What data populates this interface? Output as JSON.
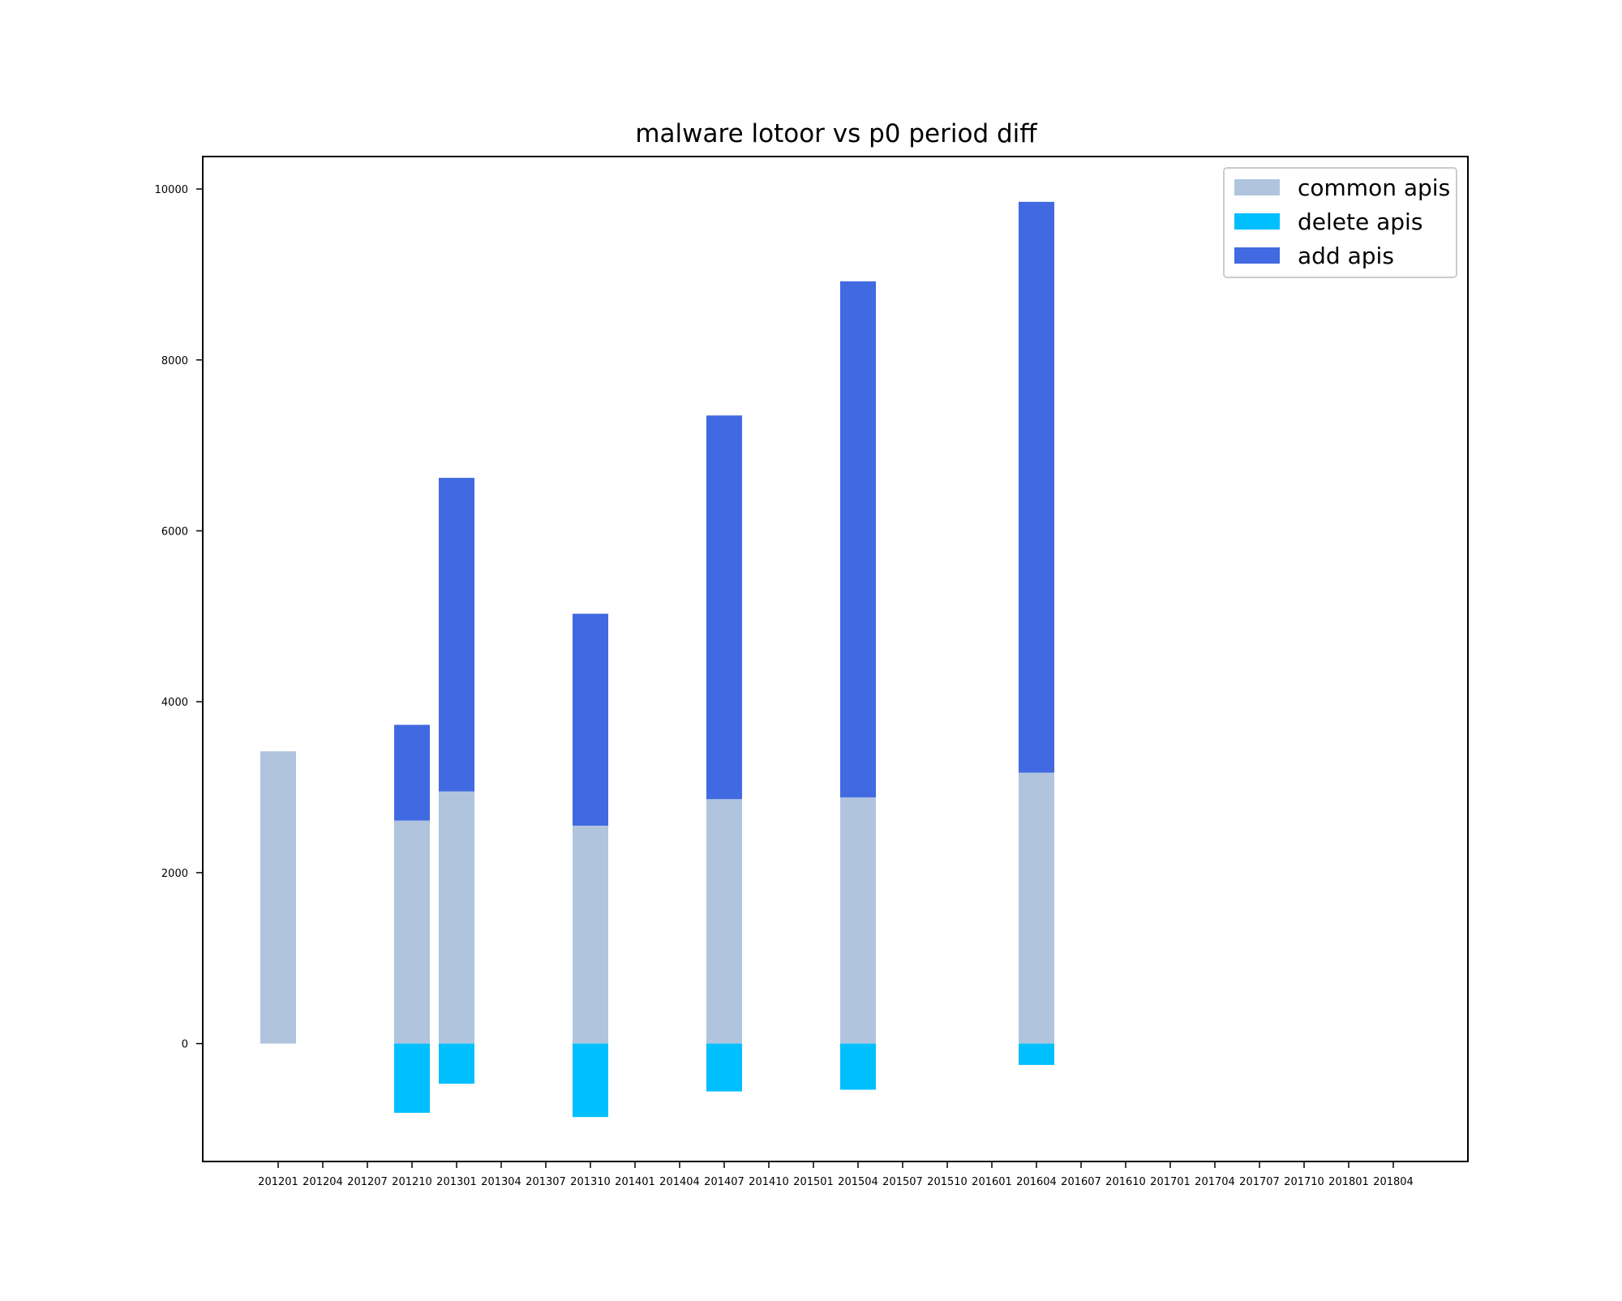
{
  "chart_data": {
    "type": "bar",
    "title": "malware lotoor vs p0 period diff",
    "xlabel": "",
    "ylabel": "",
    "categories": [
      "201201",
      "201204",
      "201207",
      "201210",
      "201301",
      "201304",
      "201307",
      "201310",
      "201401",
      "201404",
      "201407",
      "201410",
      "201501",
      "201504",
      "201507",
      "201510",
      "201601",
      "201604",
      "201607",
      "201610",
      "201701",
      "201704",
      "201707",
      "201710",
      "201801",
      "201804"
    ],
    "ylim": [
      -1380,
      10380
    ],
    "yticks": [
      0,
      2000,
      4000,
      6000,
      8000,
      10000
    ],
    "grid": false,
    "legend_position": "top-right",
    "series": [
      {
        "name": "common apis",
        "color": "#b0c4de",
        "values": [
          3420,
          0,
          0,
          2610,
          2950,
          0,
          0,
          2550,
          0,
          0,
          2860,
          0,
          0,
          2880,
          0,
          0,
          0,
          3170,
          0,
          0,
          0,
          0,
          0,
          0,
          0,
          0
        ]
      },
      {
        "name": "delete apis",
        "color": "#00bfff",
        "values": [
          0,
          0,
          0,
          -810,
          -470,
          0,
          0,
          -860,
          0,
          0,
          -560,
          0,
          0,
          -540,
          0,
          0,
          0,
          -250,
          0,
          0,
          0,
          0,
          0,
          0,
          0,
          0
        ]
      },
      {
        "name": "add apis",
        "color": "#4169e1",
        "values": [
          0,
          0,
          0,
          1120,
          3670,
          0,
          0,
          2480,
          0,
          0,
          4490,
          0,
          0,
          6040,
          0,
          0,
          0,
          6680,
          0,
          0,
          0,
          0,
          0,
          0,
          0,
          0
        ]
      }
    ]
  }
}
